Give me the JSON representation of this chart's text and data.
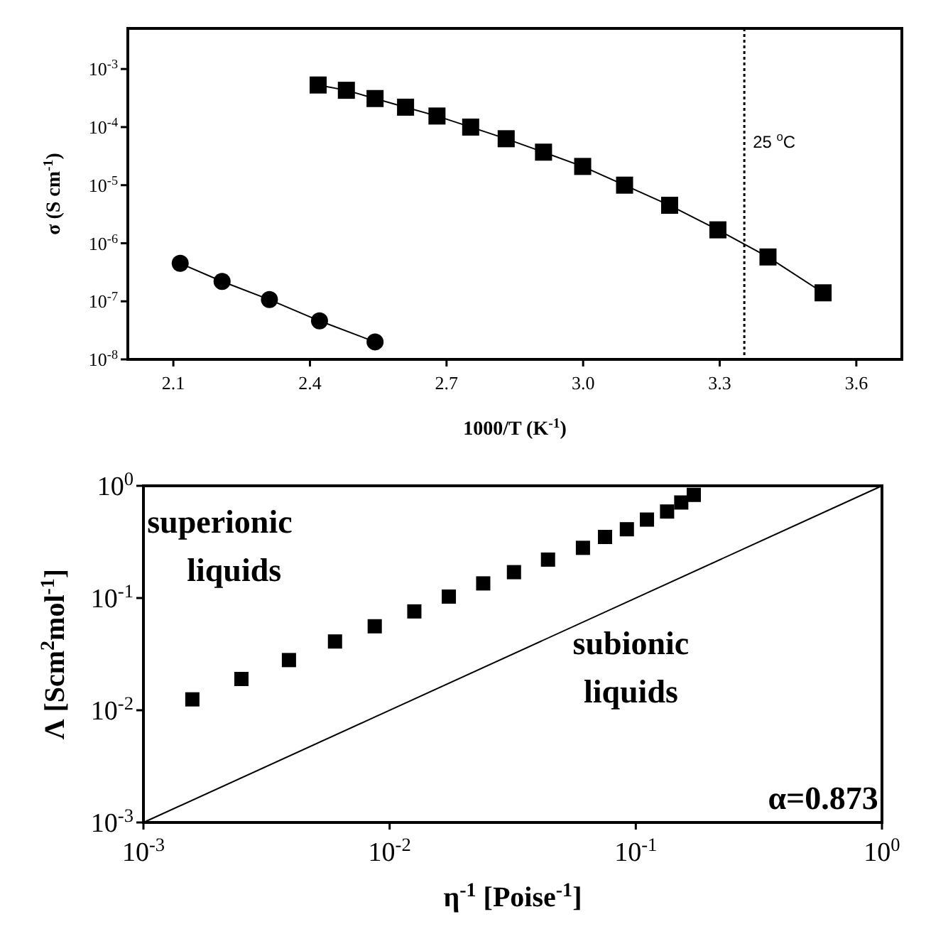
{
  "chart_data": [
    {
      "type": "line",
      "xlabel": "1000/T (K$^{-1}$)",
      "ylabel": "σ (S cm$^{-1}$)",
      "xlim": [
        2.0,
        3.7
      ],
      "ylim": [
        1e-08,
        0.005
      ],
      "log": "y",
      "grid": false,
      "xticks": [
        2.1,
        2.4,
        2.7,
        {
          "value": 3.0,
          "label": "3.0"
        },
        3.3,
        3.6
      ],
      "yticks": [
        {
          "value": 1e-08,
          "label": "10$^{-8}$"
        },
        {
          "value": 1e-07,
          "label": "10$^{-7}$"
        },
        {
          "value": 1e-06,
          "label": "10$^{-6}$"
        },
        {
          "value": 1e-05,
          "label": "10$^{-5}$"
        },
        {
          "value": 0.0001,
          "label": "10$^{-4}$"
        },
        {
          "value": 0.001,
          "label": "10$^{-3}$"
        }
      ],
      "series": [
        {
          "color": "#000000",
          "marker": "square",
          "line_style": "solid",
          "x": [
            2.418,
            2.48,
            2.543,
            2.61,
            2.679,
            2.753,
            2.831,
            2.913,
            2.999,
            3.091,
            3.19,
            3.296,
            3.406,
            3.527
          ],
          "values": [
            0.00053,
            0.00043,
            0.00031,
            0.00022,
            0.000155,
            0.0001,
            6.3e-05,
            3.7e-05,
            2.1e-05,
            1e-05,
            4.5e-06,
            1.7e-06,
            5.8e-07,
            1.4e-07
          ]
        },
        {
          "color": "#000000",
          "marker": "circle",
          "line_style": "solid",
          "x": [
            2.115,
            2.207,
            2.311,
            2.421,
            2.543
          ],
          "values": [
            4.5e-07,
            2.2e-07,
            1.07e-07,
            4.6e-08,
            2e-08
          ]
        }
      ],
      "ref_lines": [
        {
          "axis": "x",
          "value": 3.354,
          "label": "25 $^{o}$C",
          "line_style": "dotted",
          "color": "#000000"
        }
      ]
    },
    {
      "type": "scatter",
      "xlabel": "η$^{-1}$ [Poise$^{-1}$]",
      "ylabel": "Λ [Scm$^{2}$mol$^{-1}$]",
      "xlim": [
        0.001,
        1
      ],
      "ylim": [
        0.001,
        1
      ],
      "log": "xy",
      "grid": false,
      "xticks": [
        {
          "value": 0.001,
          "label": "10$^{-3}$"
        },
        {
          "value": 0.01,
          "label": "10$^{-2}$"
        },
        {
          "value": 0.1,
          "label": "10$^{-1}$"
        },
        {
          "value": 1,
          "label": "10$^{0}$"
        }
      ],
      "yticks": [
        {
          "value": 0.001,
          "label": "10$^{-3}$"
        },
        {
          "value": 0.01,
          "label": "10$^{-2}$"
        },
        {
          "value": 0.1,
          "label": "10$^{-1}$"
        },
        {
          "value": 1,
          "label": "10$^{0}$"
        }
      ],
      "series": [
        {
          "color": "#000000",
          "marker": "square",
          "x": [
            0.00158,
            0.0025,
            0.0039,
            0.006,
            0.0087,
            0.0126,
            0.0174,
            0.024,
            0.032,
            0.044,
            0.061,
            0.075,
            0.092,
            0.111,
            0.134,
            0.153,
            0.172
          ],
          "values": [
            0.0125,
            0.019,
            0.028,
            0.041,
            0.056,
            0.076,
            0.103,
            0.135,
            0.17,
            0.22,
            0.28,
            0.35,
            0.41,
            0.5,
            0.59,
            0.71,
            0.83
          ]
        },
        {
          "type": "line",
          "color": "#000000",
          "marker": "none",
          "line_style": "solid",
          "x": [
            0.001,
            1
          ],
          "values": [
            0.001,
            1
          ]
        }
      ],
      "annotations": [
        "superionic liquids",
        "subionic liquids",
        "α=0.873"
      ]
    }
  ]
}
